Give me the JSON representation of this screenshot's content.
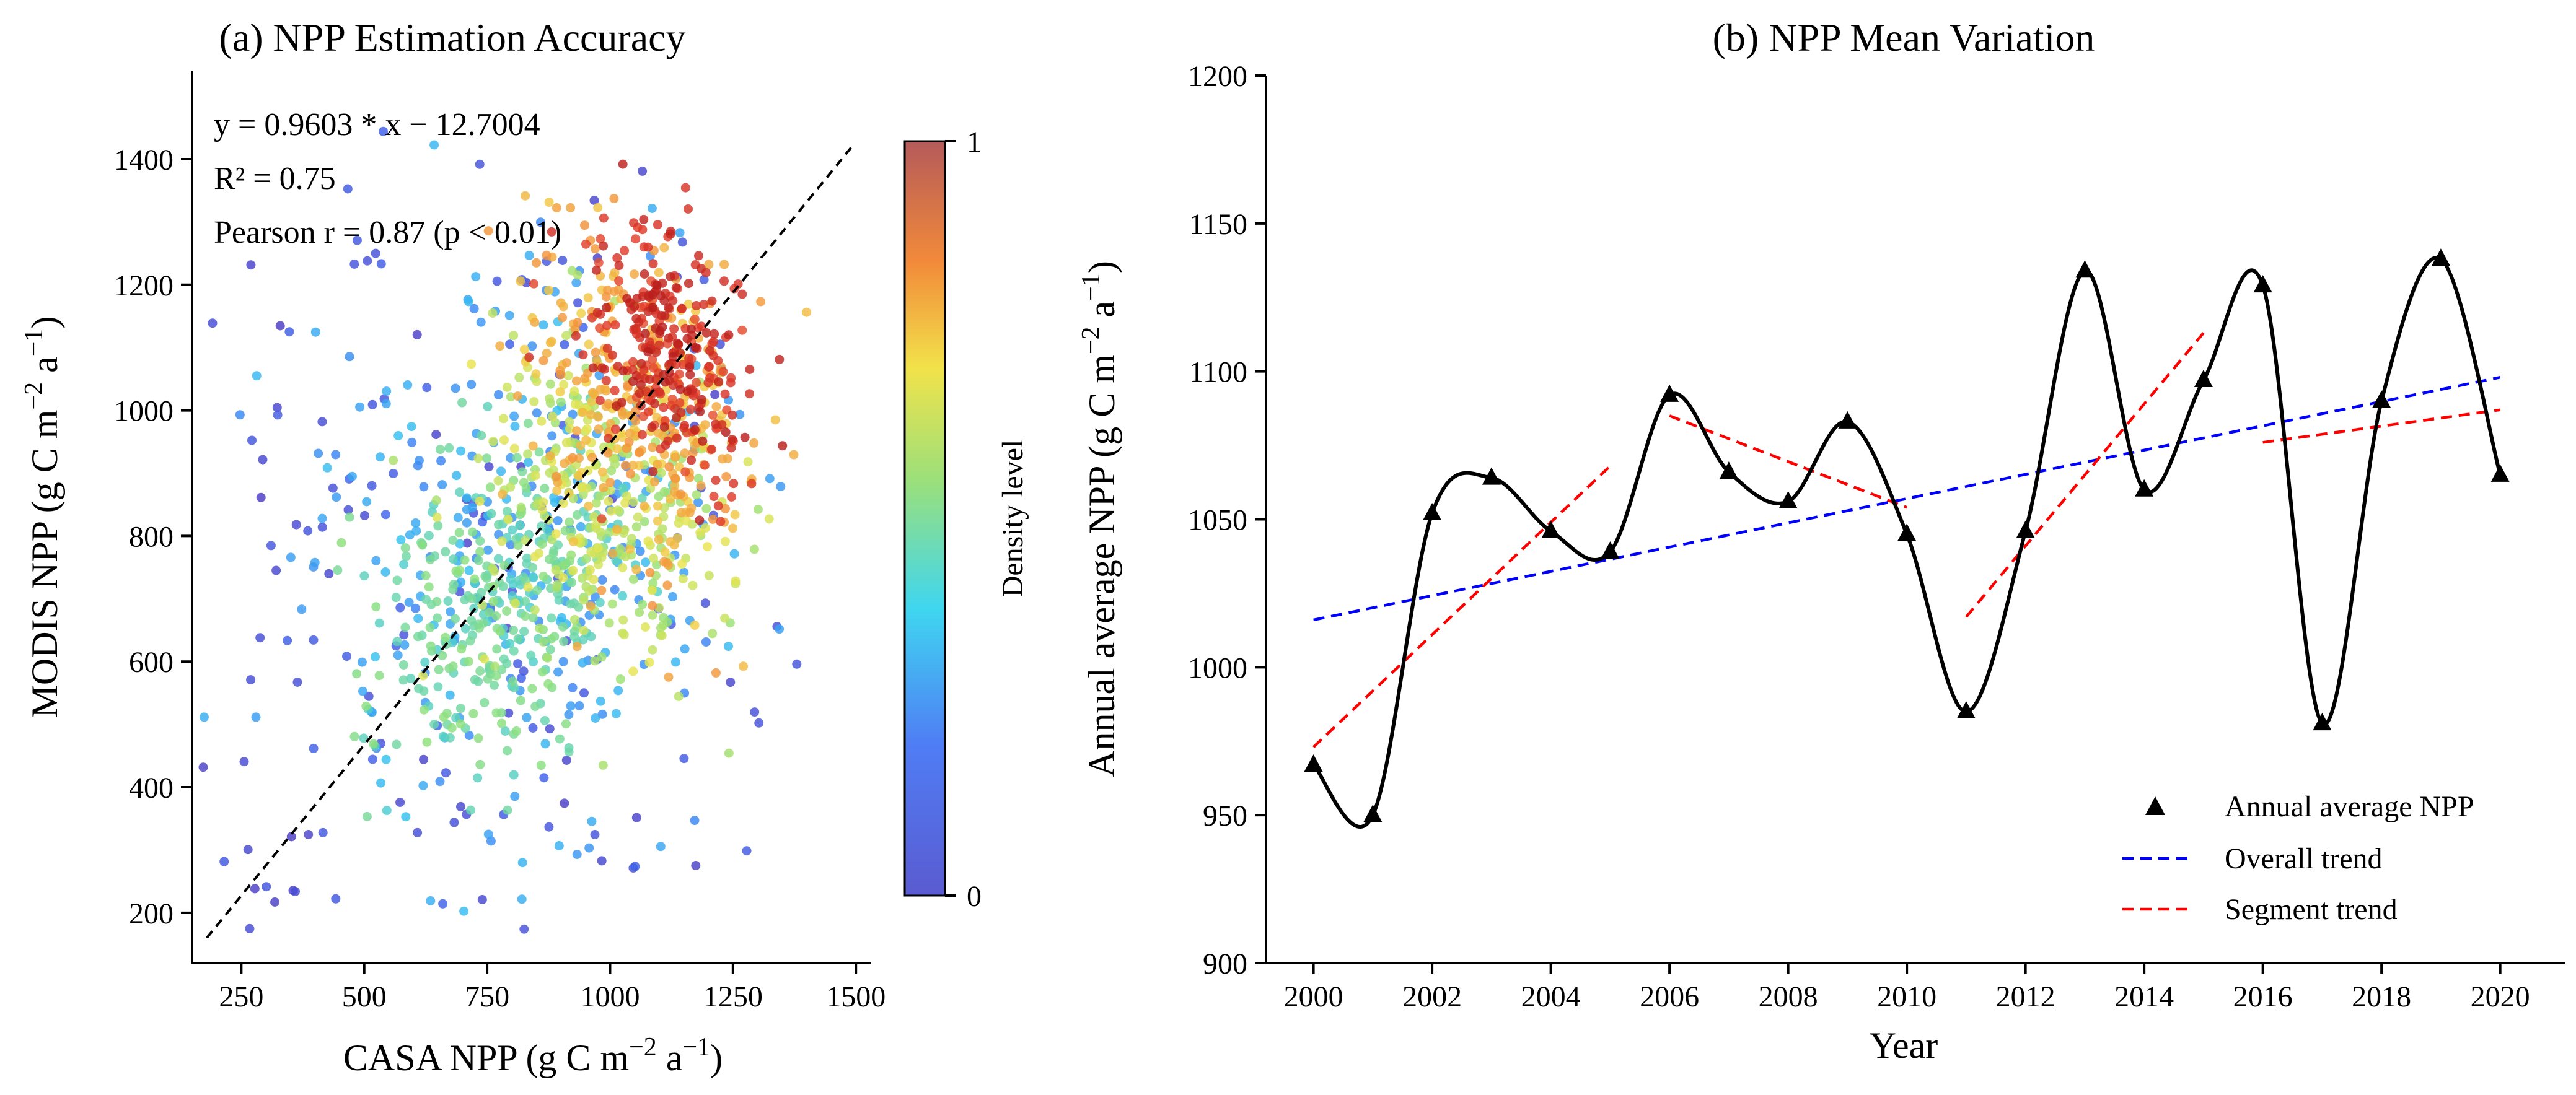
{
  "figure": {
    "panel_a_title": "(a) NPP Estimation Accuracy",
    "panel_b_title": "(b) NPP Mean Variation"
  },
  "chart_data": [
    {
      "type": "scatter",
      "title": "(a) NPP Estimation Accuracy",
      "xlabel": "CASA NPP (g C m−2 a−1)",
      "ylabel": "MODIS NPP (g C m−2 a−1)",
      "xlim": [
        150,
        1530
      ],
      "ylim": [
        120,
        1540
      ],
      "xticks": [
        250,
        500,
        750,
        1000,
        1250,
        1500
      ],
      "yticks": [
        200,
        400,
        600,
        800,
        1000,
        1200,
        1400
      ],
      "regression": {
        "slope": 0.9603,
        "intercept": -12.7004,
        "x_range": [
          180,
          1490
        ]
      },
      "annotations": [
        "y = 0.9603 * x − 12.7004",
        "R² = 0.75",
        "Pearson r = 0.87 (p < 0.01)"
      ],
      "colorbar": {
        "label": "Density level",
        "min": 0,
        "max": 1,
        "min_label": "0",
        "max_label": "1"
      },
      "point_clusters": [
        {
          "cx": 1110,
          "cy": 1090,
          "sx": 70,
          "sy": 110,
          "rot": 0.5,
          "n": 280,
          "density": 0.93
        },
        {
          "cx": 1070,
          "cy": 1000,
          "sx": 110,
          "sy": 150,
          "rot": 0.6,
          "n": 300,
          "density": 0.72
        },
        {
          "cx": 980,
          "cy": 850,
          "sx": 120,
          "sy": 150,
          "rot": 0.7,
          "n": 300,
          "density": 0.55
        },
        {
          "cx": 780,
          "cy": 680,
          "sx": 140,
          "sy": 110,
          "rot": 0.6,
          "n": 330,
          "density": 0.42
        },
        {
          "cx": 850,
          "cy": 780,
          "sx": 260,
          "sy": 220,
          "rot": 0.7,
          "n": 260,
          "density": 0.25
        },
        {
          "cx": 700,
          "cy": 700,
          "sx": 380,
          "sy": 360,
          "rot": 0.75,
          "n": 180,
          "density": 0.06
        }
      ]
    },
    {
      "type": "line",
      "title": "(b) NPP Mean Variation",
      "xlabel": "Year",
      "ylabel": "Annual average NPP (g C m−2 a−1)",
      "xlim": [
        1999.2,
        2021.1
      ],
      "ylim": [
        900,
        1200
      ],
      "xticks": [
        2000,
        2002,
        2004,
        2006,
        2008,
        2010,
        2012,
        2014,
        2016,
        2018,
        2020
      ],
      "yticks": [
        900,
        950,
        1000,
        1050,
        1100,
        1150,
        1200
      ],
      "x": [
        2000,
        2001,
        2002,
        2003,
        2004,
        2005,
        2006,
        2007,
        2008,
        2009,
        2010,
        2011,
        2012,
        2013,
        2014,
        2015,
        2016,
        2017,
        2018,
        2019,
        2020
      ],
      "values": [
        967,
        950,
        1052,
        1064,
        1046,
        1039,
        1092,
        1066,
        1056,
        1083,
        1045,
        985,
        1046,
        1134,
        1060,
        1097,
        1129,
        981,
        1090,
        1138,
        1065
      ],
      "series": [
        {
          "name": "Annual average NPP",
          "style": "triangle-markers",
          "color": "#000000"
        },
        {
          "name": "Overall trend",
          "style": "dashed",
          "color": "#0000ff",
          "from": [
            2000,
            1016
          ],
          "to": [
            2020,
            1098
          ]
        },
        {
          "name": "Segment trend",
          "style": "dashed",
          "color": "#ff0000",
          "segments": [
            {
              "from": [
                2000,
                973
              ],
              "to": [
                2005,
                1068
              ]
            },
            {
              "from": [
                2006,
                1085
              ],
              "to": [
                2010,
                1054
              ]
            },
            {
              "from": [
                2011,
                1017
              ],
              "to": [
                2015,
                1113
              ]
            },
            {
              "from": [
                2016,
                1076
              ],
              "to": [
                2020,
                1087
              ]
            }
          ]
        }
      ],
      "legend_position": "lower-right"
    }
  ]
}
